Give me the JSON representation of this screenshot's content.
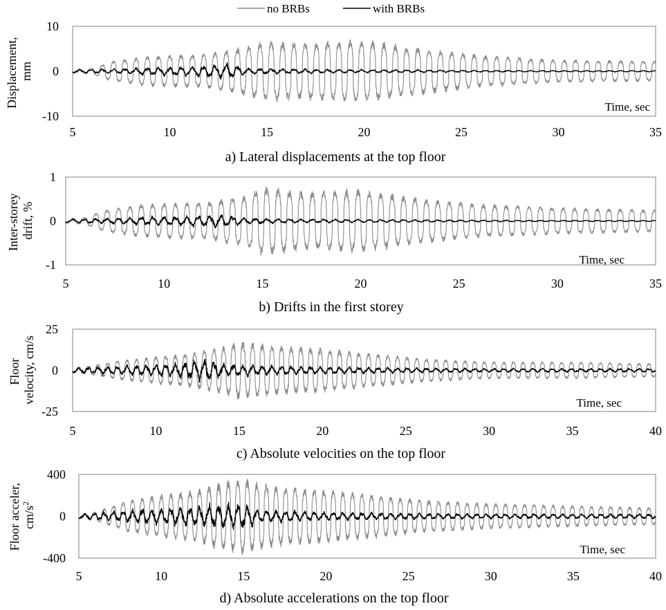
{
  "legend": {
    "position": "top-center",
    "entries": [
      {
        "label": "no BRBs",
        "color": "#8c8c8c"
      },
      {
        "label": "with BRBs",
        "color": "#000000"
      }
    ]
  },
  "colors": {
    "no_brbs": "#8c8c8c",
    "with_brbs": "#000000"
  },
  "chart_data": [
    {
      "type": "line",
      "title": "a) Lateral displacements at the top floor",
      "xlabel": "Time, sec",
      "ylabel": [
        "Displacement,",
        "mm"
      ],
      "xlim": [
        5,
        35
      ],
      "ylim": [
        -10,
        10
      ],
      "xticks": [
        5,
        10,
        15,
        20,
        25,
        30,
        35
      ],
      "yticks": [
        -10,
        0,
        10
      ],
      "grid": false,
      "signal": {
        "period_s": 0.58,
        "sample_step_s": 0.01,
        "start_s": 5
      },
      "series": [
        {
          "name": "no BRBs",
          "style": "square",
          "envelope": {
            "t": [
              5,
              6,
              7,
              9,
              12,
              14,
              15,
              17,
              20,
              23,
              26,
              30,
              35
            ],
            "amp": [
              0.3,
              0.6,
              2.2,
              3.3,
              3.8,
              5.5,
              6.5,
              6.2,
              6.8,
              5.0,
              3.5,
              2.5,
              2.2
            ]
          }
        },
        {
          "name": "with BRBs",
          "style": "wiggle",
          "envelope": {
            "t": [
              5,
              7,
              9,
              11,
              13,
              14,
              16,
              20,
              25,
              30,
              35
            ],
            "amp": [
              0.5,
              0.7,
              1.1,
              1.3,
              2.2,
              0.9,
              0.7,
              0.5,
              0.3,
              0.2,
              0.2
            ]
          }
        }
      ]
    },
    {
      "type": "line",
      "title": "b) Drifts in the first storey",
      "xlabel": "Time, sec",
      "ylabel": [
        "Inter-storey",
        "drift, %"
      ],
      "xlim": [
        5,
        35
      ],
      "ylim": [
        -1,
        1
      ],
      "xticks": [
        5,
        10,
        15,
        20,
        25,
        30,
        35
      ],
      "yticks": [
        -1,
        0,
        1
      ],
      "grid": false,
      "signal": {
        "period_s": 0.58,
        "sample_step_s": 0.01,
        "start_s": 5
      },
      "series": [
        {
          "name": "no BRBs",
          "style": "square",
          "envelope": {
            "t": [
              5,
              6,
              7,
              9,
              12,
              14,
              15,
              17,
              20,
              23,
              26,
              30,
              35
            ],
            "amp": [
              0.05,
              0.08,
              0.25,
              0.38,
              0.42,
              0.55,
              0.78,
              0.65,
              0.7,
              0.5,
              0.38,
              0.3,
              0.25
            ]
          }
        },
        {
          "name": "with BRBs",
          "style": "wiggle",
          "envelope": {
            "t": [
              5,
              7,
              9,
              11,
              13,
              14,
              16,
              20,
              25,
              30,
              35
            ],
            "amp": [
              0.05,
              0.08,
              0.12,
              0.14,
              0.2,
              0.1,
              0.06,
              0.05,
              0.03,
              0.02,
              0.02
            ]
          }
        }
      ]
    },
    {
      "type": "line",
      "title": "c) Absolute velocities on the top floor",
      "xlabel": "Time, sec",
      "ylabel": [
        "Floor",
        "velocity, cm/s"
      ],
      "xlim": [
        5,
        40
      ],
      "ylim": [
        -25,
        25
      ],
      "xticks": [
        5,
        10,
        15,
        20,
        25,
        30,
        35,
        40
      ],
      "yticks": [
        -25,
        0,
        25
      ],
      "grid": false,
      "signal": {
        "period_s": 0.58,
        "sample_step_s": 0.01,
        "start_s": 5
      },
      "series": [
        {
          "name": "no BRBs",
          "style": "square",
          "envelope": {
            "t": [
              5,
              6,
              8,
              10,
              12,
              14,
              15,
              17,
              20,
              23,
              26,
              30,
              35,
              40
            ],
            "amp": [
              1.5,
              2.5,
              6,
              8,
              10,
              14,
              17,
              15,
              13,
              10,
              7,
              5,
              5,
              4
            ]
          }
        },
        {
          "name": "with BRBs",
          "style": "wiggle",
          "envelope": {
            "t": [
              5,
              7,
              9,
              11,
              13,
              14,
              16,
              20,
              25,
              30,
              35,
              40
            ],
            "amp": [
              2,
              3,
              4,
              5,
              9,
              5,
              4,
              3,
              2,
              1.5,
              1.5,
              1.5
            ]
          }
        }
      ]
    },
    {
      "type": "line",
      "title": "d) Absolute accelerations on the top floor",
      "xlabel": "Time, sec",
      "ylabel": [
        "Floor acceler,",
        "cm/s"
      ],
      "ylabel_superscript": "2",
      "xlim": [
        5,
        40
      ],
      "ylim": [
        -400,
        400
      ],
      "xticks": [
        5,
        10,
        15,
        20,
        25,
        30,
        35,
        40
      ],
      "yticks": [
        -400,
        0,
        400
      ],
      "grid": false,
      "signal": {
        "period_s": 0.58,
        "sample_step_s": 0.01,
        "start_s": 5
      },
      "series": [
        {
          "name": "no BRBs",
          "style": "square",
          "envelope": {
            "t": [
              5,
              6,
              8,
              10,
              12,
              14,
              15,
              17,
              20,
              23,
              26,
              30,
              35,
              40
            ],
            "amp": [
              20,
              40,
              150,
              200,
              240,
              330,
              350,
              280,
              250,
              200,
              150,
              120,
              100,
              80
            ]
          }
        },
        {
          "name": "with BRBs",
          "style": "wiggle",
          "envelope": {
            "t": [
              5,
              7,
              9,
              11,
              13,
              15,
              16,
              20,
              25,
              30,
              35,
              40
            ],
            "amp": [
              30,
              60,
              90,
              110,
              140,
              160,
              80,
              50,
              40,
              30,
              30,
              30
            ]
          }
        }
      ]
    }
  ]
}
